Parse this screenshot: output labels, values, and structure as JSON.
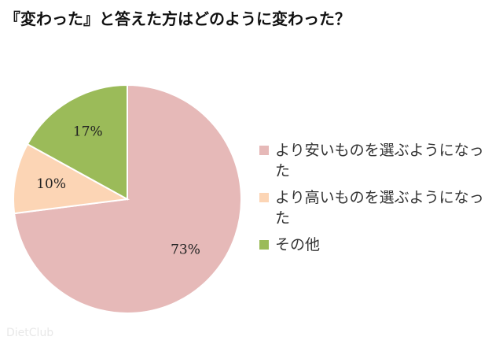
{
  "chart_data": {
    "type": "pie",
    "title": "『変わった』と答えた方はどのように変わった？",
    "categories": [
      "より安いものを選ぶようになった",
      "より高いものを選ぶようになった",
      "その他"
    ],
    "values": [
      73,
      10,
      17
    ],
    "value_labels": [
      "73%",
      "10%",
      "17%"
    ],
    "colors": [
      "#e6b9b8",
      "#fcd5b5",
      "#9bbb59"
    ],
    "legend": "right"
  },
  "watermark": "DietClub"
}
